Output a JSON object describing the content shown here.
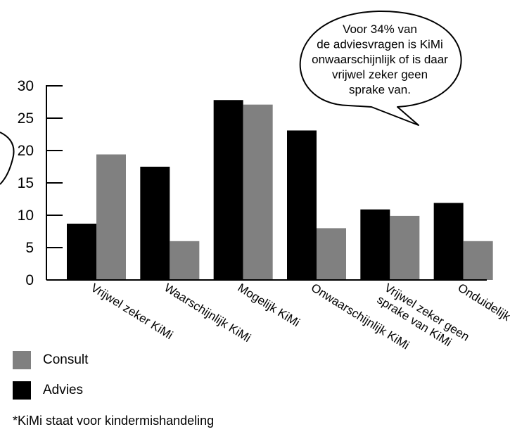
{
  "chart_data": {
    "type": "bar",
    "categories": [
      [
        "Vrijwel zeker KiMi"
      ],
      [
        "Waarschijnlijk KiMi"
      ],
      [
        "Mogelijk KiMi"
      ],
      [
        "Onwaarschijnlijk KiMi"
      ],
      [
        "Vrijwel zeker geen",
        "sprake van KiMi"
      ],
      [
        "Onduidelijk KiMi"
      ]
    ],
    "series": [
      {
        "name": "Advies",
        "color": "#000000",
        "values": [
          8.7,
          17.5,
          27.8,
          23.1,
          10.9,
          11.9
        ]
      },
      {
        "name": "Consult",
        "color": "#808080",
        "values": [
          19.4,
          6.0,
          27.1,
          8.0,
          9.9,
          6.0
        ]
      }
    ],
    "ylim": [
      0,
      30
    ],
    "yticks": [
      0,
      5,
      10,
      15,
      20,
      25,
      30
    ],
    "grid": false,
    "annotation": {
      "lines": [
        "Voor 34% van",
        "de adviesvragen is KiMi",
        "onwaarschijnlijk of is daar",
        "vrijwel zeker geen",
        "sprake van."
      ]
    }
  },
  "legend": [
    {
      "label": "Consult",
      "color": "#808080"
    },
    {
      "label": "Advies",
      "color": "#000000"
    }
  ],
  "footnote": "*KiMi staat voor kindermishandeling"
}
